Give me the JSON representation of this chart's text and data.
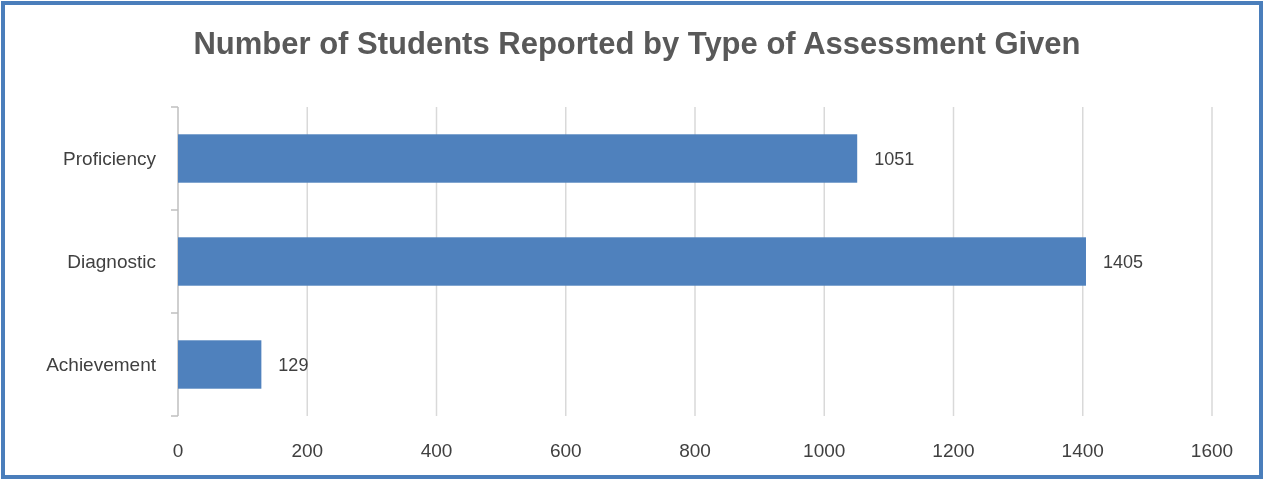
{
  "chart_data": {
    "type": "bar",
    "orientation": "horizontal",
    "title": "Number of Students Reported by Type of Assessment Given",
    "categories": [
      "Proficiency",
      "Diagnostic",
      "Achievement"
    ],
    "values": [
      1051,
      1405,
      129
    ],
    "color": "#4f81bd",
    "xlim": [
      0,
      1600
    ],
    "xticks": [
      0,
      200,
      400,
      600,
      800,
      1000,
      1200,
      1400,
      1600
    ],
    "grid": "x",
    "data_labels": true
  }
}
